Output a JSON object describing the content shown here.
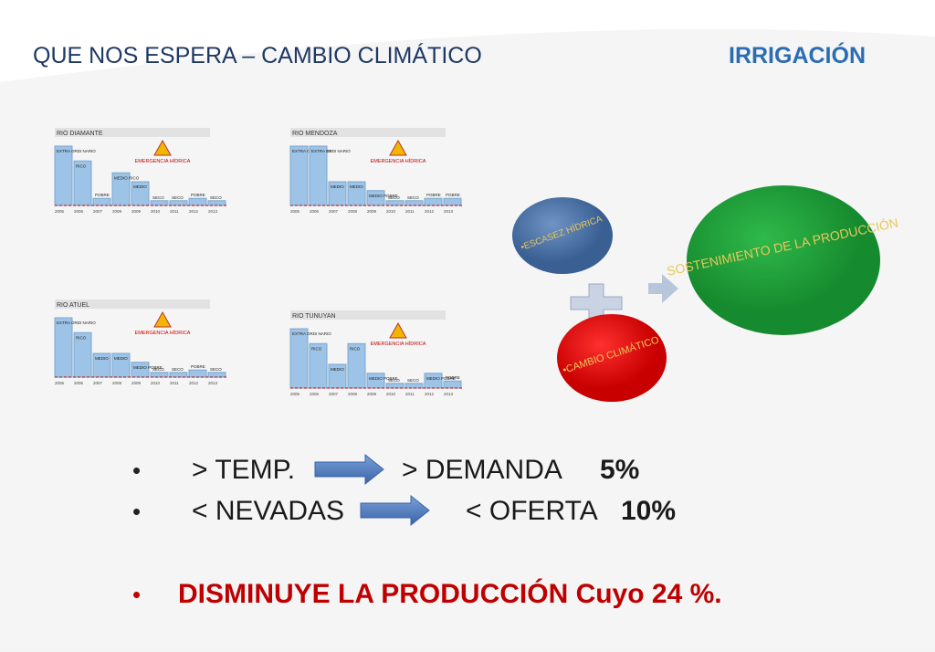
{
  "header": {
    "title": "QUE NOS ESPERA – CAMBIO CLIMÁTICO",
    "logo": "IRRIGACIÓN"
  },
  "panels": [
    {
      "title": "RIO DIAMANTE",
      "warning": "EMERGENCIA HÍDRICA",
      "bars": [
        "EXTRA ORDI NARIO",
        "RICO",
        "POBRE",
        "MEDIO RICO",
        "MEDIO",
        "SECO",
        "SECO",
        "POBRE",
        "SECO"
      ],
      "values": [
        100,
        75,
        12,
        55,
        40,
        8,
        8,
        12,
        8
      ],
      "years": [
        "2005",
        "2006",
        "2007",
        "2008",
        "2009",
        "2010",
        "2011",
        "2012",
        "2013"
      ]
    },
    {
      "title": "RIO MENDOZA",
      "warning": "EMERGENCIA HÍDRICA",
      "bars": [
        "EXTRA ORDI NARIO",
        "EXTRA ORDI NARIO",
        "MEDIO",
        "MEDIO",
        "MEDIO POBRE",
        "SECO",
        "SECO",
        "POBRE",
        "POBRE"
      ],
      "values": [
        100,
        100,
        40,
        40,
        25,
        8,
        8,
        12,
        12
      ],
      "years": [
        "2005",
        "2006",
        "2007",
        "2008",
        "2009",
        "2010",
        "2011",
        "2012",
        "2013"
      ]
    },
    {
      "title": "RIO ATUEL",
      "warning": "EMERGENCIA HÍDRICA",
      "bars": [
        "EXTRA ORDI NARIO",
        "RICO",
        "MEDIO",
        "MEDIO",
        "MEDIO POBRE",
        "SECO",
        "SECO",
        "POBRE",
        "SECO"
      ],
      "values": [
        100,
        75,
        40,
        40,
        25,
        8,
        8,
        12,
        8
      ],
      "years": [
        "2005",
        "2006",
        "2007",
        "2008",
        "2009",
        "2010",
        "2011",
        "2012",
        "2013"
      ]
    },
    {
      "title": "RIO TUNUYAN",
      "warning": "EMERGENCIA HÍDRICA",
      "bars": [
        "EXTRA ORDI NARIO",
        "RICO",
        "MEDIO",
        "RICO",
        "MEDIO POBRE",
        "SECO",
        "SECO",
        "MEDIO POBRE",
        "POBRE"
      ],
      "values": [
        100,
        75,
        40,
        75,
        25,
        8,
        8,
        25,
        12
      ],
      "years": [
        "2005",
        "2006",
        "2007",
        "2008",
        "2009",
        "2010",
        "2011",
        "2012",
        "2013"
      ]
    }
  ],
  "diagram": {
    "circle1": "•ESCASEZ HÍDRICA",
    "circle2": "•CAMBIO CLIMÁTICO",
    "result": "SOSTENIMIENTO DE LA PRODUCCIÓN"
  },
  "bullets": [
    {
      "left": "> TEMP.",
      "right": "> DEMANDA",
      "pct": "5%"
    },
    {
      "left": "< NEVADAS",
      "right": "< OFERTA",
      "pct": "10%"
    }
  ],
  "conclusion": "DISMINUYE LA PRODUCCIÓN Cuyo 24 %."
}
